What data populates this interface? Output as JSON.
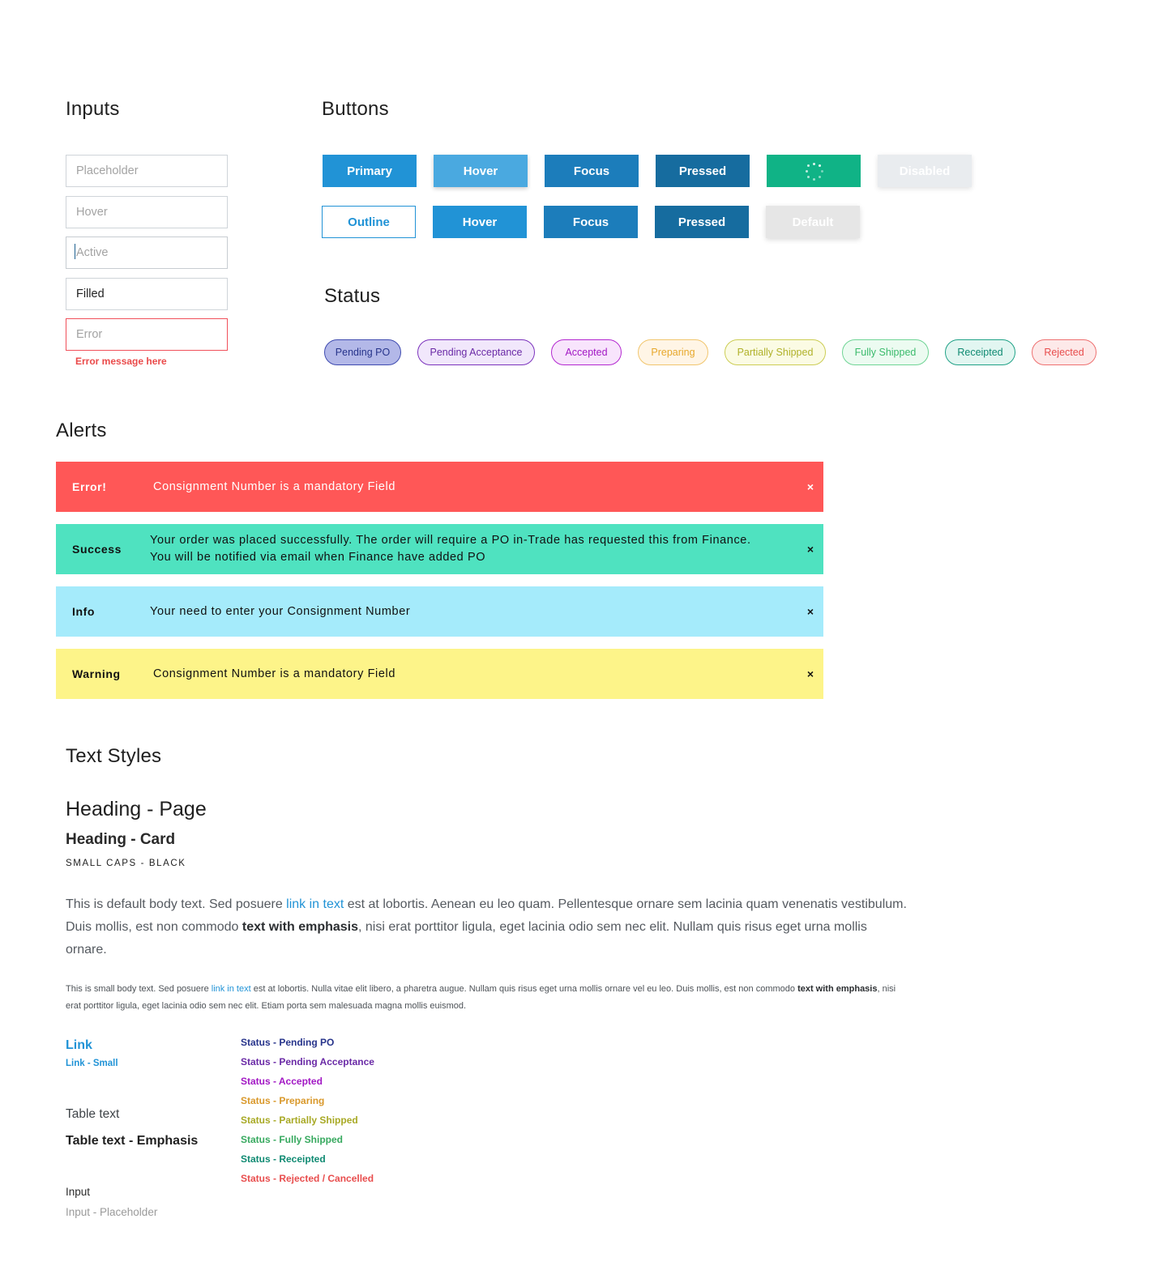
{
  "sections": {
    "inputs": "Inputs",
    "buttons": "Buttons",
    "status": "Status",
    "alerts": "Alerts",
    "text_styles": "Text Styles"
  },
  "inputs": {
    "placeholder": "Placeholder",
    "hover": "Hover",
    "active": "Active",
    "filled_value": "Filled",
    "error": "Error",
    "error_message": "Error message here"
  },
  "buttons": {
    "row1": [
      "Primary",
      "Hover",
      "Focus",
      "Pressed",
      "",
      "Disabled"
    ],
    "row2": [
      "Outline",
      "Hover",
      "Focus",
      "Pressed",
      "Default"
    ],
    "loading_icon": "spinner-icon"
  },
  "statuses": [
    {
      "label": "Pending PO",
      "text": "#27348b",
      "bg": "#b3b8e8",
      "border": "#3f4bb0"
    },
    {
      "label": "Pending Acceptance",
      "text": "#6a2aa6",
      "bg": "#f1e7fb",
      "border": "#7c33bd"
    },
    {
      "label": "Accepted",
      "text": "#a218c4",
      "bg": "#f8e4fc",
      "border": "#b328d0"
    },
    {
      "label": "Preparing",
      "text": "#e7a82c",
      "bg": "#fff5e6",
      "border": "#f1c56d"
    },
    {
      "label": "Partially Shipped",
      "text": "#b0b12a",
      "bg": "#fbfbe4",
      "border": "#cccd54"
    },
    {
      "label": "Fully Shipped",
      "text": "#3bbb6c",
      "bg": "#ecfbf1",
      "border": "#6fd495"
    },
    {
      "label": "Receipted",
      "text": "#0f8a72",
      "bg": "#e2f6f1",
      "border": "#20a287"
    },
    {
      "label": "Rejected",
      "text": "#e84d4d",
      "bg": "#fde9e9",
      "border": "#ee7070"
    }
  ],
  "alerts": [
    {
      "type": "Error!",
      "message": "Consignment Number is a mandatory Field",
      "bg": "#ff5757",
      "color": "#ffffff",
      "close": "×"
    },
    {
      "type": "Success",
      "message": "Your order was placed successfully. The order will require a PO in-Trade has requested this from Finance.",
      "message2": "You will be notified via email when Finance have added PO",
      "bg": "#4fe2c0",
      "color": "#111111",
      "close": "×"
    },
    {
      "type": "Info",
      "message": "Your need to enter your Consignment Number",
      "bg": "#a5ebfb",
      "color": "#111111",
      "close": "×"
    },
    {
      "type": "Warning",
      "message": "Consignment Number is a mandatory Field",
      "bg": "#fdf489",
      "color": "#111111",
      "close": "×"
    }
  ],
  "text_styles": {
    "heading_page": "Heading - Page",
    "heading_card": "Heading - Card",
    "small_caps": "SMALL CAPS - BLACK",
    "body": {
      "p1": "This is default body text. Sed posuere ",
      "link": "link in text",
      "p2": " est at lobortis. Aenean eu leo quam. Pellentesque ornare sem lacinia quam venenatis vestibulum. Duis mollis, est non commodo ",
      "emph": "text with emphasis",
      "p3": ", nisi erat porttitor ligula, eget lacinia odio sem nec elit. Nullam quis risus eget urna mollis ornare."
    },
    "small": {
      "p1": "This is small body text. Sed posuere ",
      "link": "link in text",
      "p2": " est at lobortis. Nulla vitae elit libero, a pharetra augue. Nullam quis risus eget urna mollis ornare vel eu leo. Duis mollis, est non commodo ",
      "emph": "text with emphasis",
      "p3": ", nisi erat porttitor ligula, eget lacinia odio sem nec elit. Etiam porta sem malesuada magna mollis euismod."
    },
    "link": "Link",
    "link_small": "Link - Small",
    "table_text": "Table text",
    "table_text_emphasis": "Table text - Emphasis",
    "input": "Input",
    "input_placeholder": "Input - Placeholder",
    "status_text": [
      {
        "label": "Status - Pending PO",
        "color": "#27348b"
      },
      {
        "label": "Status - Pending Acceptance",
        "color": "#6a2aa6"
      },
      {
        "label": "Status - Accepted",
        "color": "#a218c4"
      },
      {
        "label": "Status - Preparing",
        "color": "#d9982a"
      },
      {
        "label": "Status - Partially Shipped",
        "color": "#a8a925"
      },
      {
        "label": "Status - Fully Shipped",
        "color": "#37a95f"
      },
      {
        "label": "Status - Receipted",
        "color": "#0f8a72"
      },
      {
        "label": "Status - Rejected / Cancelled",
        "color": "#e84d4d"
      }
    ]
  }
}
